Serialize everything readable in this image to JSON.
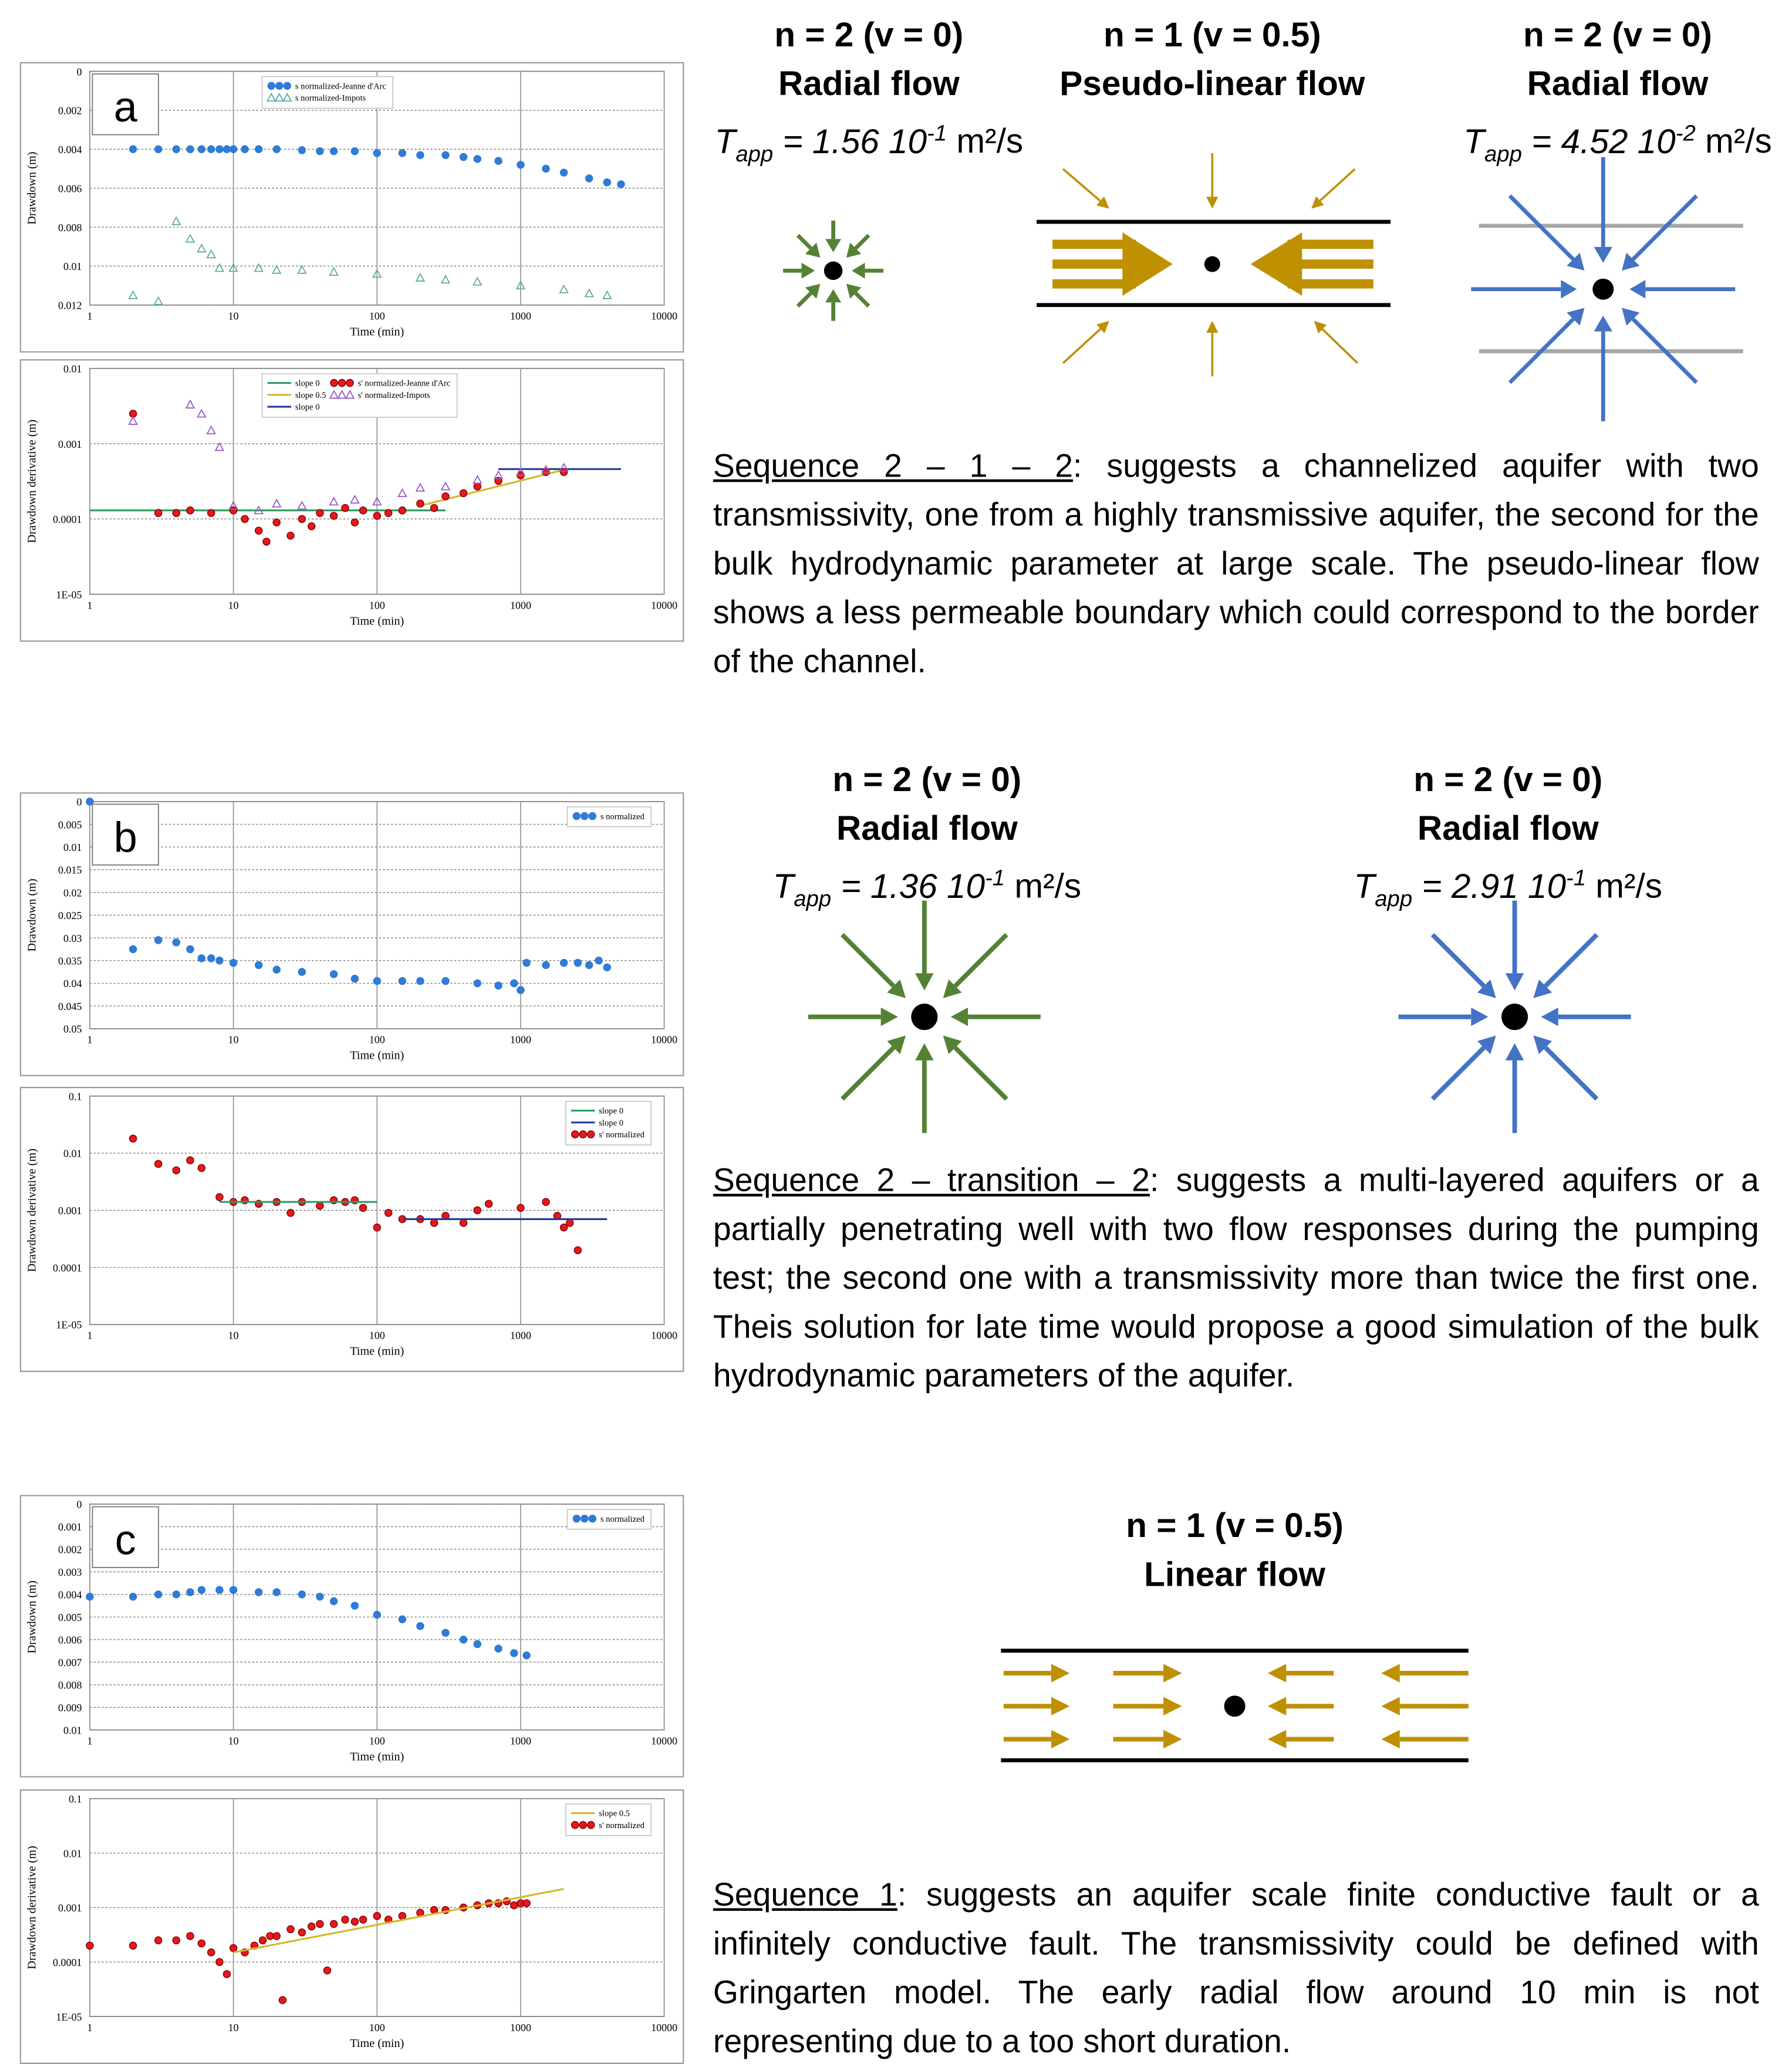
{
  "chart_data": [
    {
      "type": "scatter",
      "xlabel": "Time (min)",
      "ylabel": "Drawdown (m)",
      "xscale": "log",
      "xlim": [
        1,
        10000
      ],
      "xticks": [
        1,
        10,
        100,
        1000,
        10000
      ],
      "yscale": "linear",
      "yinvert": true,
      "ylim": [
        0,
        0.012
      ],
      "yticks": [
        0,
        0.002,
        0.004,
        0.006,
        0.008,
        0.01,
        0.012
      ],
      "grid": true,
      "legend": "upper center",
      "series": [
        {
          "name": "s normalized-Jeanne d'Arc",
          "color": "#2f7bd6",
          "marker": "circle",
          "x": [
            2,
            3,
            4,
            5,
            6,
            7,
            8,
            9,
            10,
            12,
            15,
            20,
            30,
            40,
            50,
            70,
            100,
            150,
            200,
            300,
            400,
            500,
            700,
            1000,
            1500,
            2000,
            3000,
            4000,
            5000
          ],
          "values": [
            0.004,
            0.004,
            0.004,
            0.004,
            0.004,
            0.004,
            0.004,
            0.004,
            0.004,
            0.004,
            0.004,
            0.004,
            0.00405,
            0.0041,
            0.0041,
            0.0041,
            0.0042,
            0.0042,
            0.0043,
            0.0043,
            0.0044,
            0.0045,
            0.0046,
            0.0048,
            0.005,
            0.0052,
            0.0055,
            0.0057,
            0.0058
          ]
        },
        {
          "name": "s normalized-Impots",
          "color": "#5fa8a0",
          "marker": "triangle",
          "x": [
            2,
            3,
            4,
            5,
            6,
            7,
            8,
            10,
            15,
            20,
            30,
            50,
            100,
            200,
            300,
            500,
            1000,
            2000,
            3000,
            4000
          ],
          "values": [
            0.0115,
            0.0118,
            0.0077,
            0.0086,
            0.0091,
            0.0094,
            0.0101,
            0.0101,
            0.0101,
            0.0102,
            0.0102,
            0.0103,
            0.0104,
            0.0106,
            0.0107,
            0.0108,
            0.011,
            0.0112,
            0.0114,
            0.0115
          ]
        }
      ]
    },
    {
      "type": "scatter",
      "xlabel": "Time (min)",
      "ylabel": "Drawdown derivative (m)",
      "xscale": "log",
      "xlim": [
        1,
        10000
      ],
      "xticks": [
        1,
        10,
        100,
        1000,
        10000
      ],
      "yscale": "log",
      "ylim": [
        1e-05,
        0.01
      ],
      "yticks": [
        {
          "value": 1e-05,
          "label": "1E-05"
        },
        0.0001,
        0.001,
        0.01
      ],
      "grid": true,
      "legend": "upper center",
      "series": [
        {
          "name": "slope 0",
          "color": "#2f9a63",
          "marker": "line",
          "x": [
            1,
            300
          ],
          "values": [
            0.00013,
            0.00013
          ]
        },
        {
          "name": "slope 0.5",
          "color": "#d4b82a",
          "marker": "line",
          "x": [
            200,
            2000
          ],
          "values": [
            0.00015,
            0.00045
          ]
        },
        {
          "name": "slope 0",
          "color": "#1f3f9a",
          "marker": "line",
          "x": [
            700,
            5000
          ],
          "values": [
            0.00046,
            0.00046
          ]
        },
        {
          "name": "s' normalized-Jeanne d'Arc",
          "color": "#e8171b",
          "marker": "circle",
          "x": [
            2,
            3,
            4,
            5,
            7,
            10,
            12,
            15,
            17,
            20,
            25,
            30,
            35,
            40,
            50,
            60,
            70,
            80,
            100,
            120,
            150,
            200,
            250,
            300,
            400,
            500,
            700,
            1000,
            1500,
            2000
          ],
          "values": [
            0.0025,
            0.00012,
            0.00012,
            0.00013,
            0.00012,
            0.00013,
            0.0001,
            7e-05,
            5e-05,
            9e-05,
            6e-05,
            0.0001,
            8e-05,
            0.00012,
            0.00011,
            0.00014,
            9e-05,
            0.00013,
            0.00011,
            0.00012,
            0.00013,
            0.00016,
            0.00014,
            0.0002,
            0.00022,
            0.00027,
            0.00032,
            0.00038,
            0.00042,
            0.00042
          ]
        },
        {
          "name": "s' normalized-Impots",
          "color": "#9a5ac4",
          "marker": "triangle",
          "x": [
            2,
            5,
            6,
            7,
            8,
            10,
            15,
            20,
            30,
            50,
            70,
            100,
            150,
            200,
            300,
            500,
            700,
            1000,
            1500,
            2000
          ],
          "values": [
            0.002,
            0.0033,
            0.0025,
            0.0015,
            0.0009,
            0.00015,
            0.00013,
            0.00016,
            0.00015,
            0.00017,
            0.00018,
            0.00017,
            0.00022,
            0.00026,
            0.00027,
            0.00033,
            0.00038,
            0.00042,
            0.00045,
            0.00048
          ]
        }
      ]
    },
    {
      "type": "scatter",
      "xlabel": "Time (min)",
      "ylabel": "Drawdown (m)",
      "xscale": "log",
      "xlim": [
        1,
        10000
      ],
      "xticks": [
        1,
        10,
        100,
        1000,
        10000
      ],
      "yscale": "linear",
      "yinvert": true,
      "ylim": [
        0,
        0.05
      ],
      "yticks": [
        0,
        0.005,
        0.01,
        0.015,
        0.02,
        0.025,
        0.03,
        0.035,
        0.04,
        0.045,
        0.05
      ],
      "grid": true,
      "legend": "upper right",
      "series": [
        {
          "name": "s normalized",
          "color": "#2f7bd6",
          "marker": "circle",
          "x": [
            1,
            2,
            3,
            4,
            5,
            6,
            7,
            8,
            10,
            15,
            20,
            30,
            50,
            70,
            100,
            150,
            200,
            300,
            500,
            700,
            900,
            1000,
            1100,
            1500,
            2000,
            2500,
            3000,
            3500,
            4000
          ],
          "values": [
            0,
            0.0325,
            0.0305,
            0.031,
            0.0325,
            0.0345,
            0.0345,
            0.035,
            0.0355,
            0.036,
            0.037,
            0.0375,
            0.038,
            0.039,
            0.0395,
            0.0395,
            0.0395,
            0.0395,
            0.04,
            0.0405,
            0.04,
            0.0415,
            0.0355,
            0.036,
            0.0355,
            0.0355,
            0.036,
            0.035,
            0.0365
          ]
        }
      ]
    },
    {
      "type": "scatter",
      "xlabel": "Time (min)",
      "ylabel": "Drawdown derivative (m)",
      "xscale": "log",
      "xlim": [
        1,
        10000
      ],
      "xticks": [
        1,
        10,
        100,
        1000,
        10000
      ],
      "yscale": "log",
      "ylim": [
        1e-05,
        0.1
      ],
      "yticks": [
        {
          "value": 1e-05,
          "label": "1E-05"
        },
        0.0001,
        0.001,
        0.01,
        0.1
      ],
      "grid": true,
      "legend": "upper right",
      "series": [
        {
          "name": "s' normalized",
          "color": "#e8171b",
          "marker": "circle",
          "x": [
            2,
            3,
            4,
            5,
            6,
            8,
            10,
            12,
            15,
            20,
            25,
            30,
            40,
            50,
            60,
            70,
            80,
            100,
            120,
            150,
            200,
            250,
            300,
            400,
            500,
            600,
            1000,
            1500,
            1800,
            2000,
            2200,
            2500
          ],
          "values": [
            0.018,
            0.0065,
            0.005,
            0.0075,
            0.0055,
            0.0017,
            0.0014,
            0.0015,
            0.0013,
            0.0014,
            0.0009,
            0.0014,
            0.0012,
            0.0015,
            0.0014,
            0.0015,
            0.0011,
            0.0005,
            0.0009,
            0.0007,
            0.0007,
            0.0006,
            0.0008,
            0.0006,
            0.001,
            0.0013,
            0.0011,
            0.0014,
            0.0008,
            0.0005,
            0.0006,
            0.0002
          ]
        },
        {
          "name": "slope 0",
          "color": "#2f9a63",
          "marker": "line",
          "x": [
            8,
            100
          ],
          "values": [
            0.0014,
            0.0014
          ]
        },
        {
          "name": "slope 0",
          "color": "#1f3f9a",
          "marker": "line",
          "x": [
            150,
            4000
          ],
          "values": [
            0.0007,
            0.0007
          ]
        }
      ]
    },
    {
      "type": "scatter",
      "xlabel": "Time (min)",
      "ylabel": "Drawdown (m)",
      "xscale": "log",
      "xlim": [
        1,
        10000
      ],
      "xticks": [
        1,
        10,
        100,
        1000,
        10000
      ],
      "yscale": "linear",
      "yinvert": true,
      "ylim": [
        0,
        0.01
      ],
      "yticks": [
        0,
        0.001,
        0.002,
        0.003,
        0.004,
        0.005,
        0.006,
        0.007,
        0.008,
        0.009,
        0.01
      ],
      "grid": true,
      "legend": "upper right",
      "series": [
        {
          "name": "s normalized",
          "color": "#2f7bd6",
          "marker": "circle",
          "x": [
            1,
            2,
            3,
            4,
            5,
            6,
            8,
            10,
            15,
            20,
            30,
            40,
            50,
            70,
            100,
            150,
            200,
            300,
            400,
            500,
            700,
            900,
            1100
          ],
          "values": [
            0.0041,
            0.0041,
            0.004,
            0.004,
            0.0039,
            0.0038,
            0.0038,
            0.0038,
            0.0039,
            0.0039,
            0.004,
            0.0041,
            0.0043,
            0.0045,
            0.0049,
            0.0051,
            0.0054,
            0.0057,
            0.006,
            0.0062,
            0.0064,
            0.0066,
            0.0067
          ]
        }
      ]
    },
    {
      "type": "scatter",
      "xlabel": "Time (min)",
      "ylabel": "Drawdown derivative (m)",
      "xscale": "log",
      "xlim": [
        1,
        10000
      ],
      "xticks": [
        1,
        10,
        100,
        1000,
        10000
      ],
      "yscale": "log",
      "ylim": [
        1e-05,
        0.1
      ],
      "yticks": [
        {
          "value": 1e-05,
          "label": "1E-05"
        },
        0.0001,
        0.001,
        0.01,
        0.1
      ],
      "grid": true,
      "legend": "upper right",
      "series": [
        {
          "name": "s' normalized",
          "color": "#e8171b",
          "marker": "circle",
          "x": [
            1,
            2,
            3,
            4,
            5,
            6,
            7,
            8,
            9,
            10,
            12,
            14,
            16,
            18,
            20,
            22,
            25,
            30,
            35,
            40,
            45,
            50,
            60,
            70,
            80,
            100,
            120,
            150,
            200,
            250,
            300,
            400,
            500,
            600,
            700,
            800,
            900,
            1000,
            1100
          ],
          "values": [
            0.0002,
            0.0002,
            0.00025,
            0.00025,
            0.0003,
            0.00022,
            0.00015,
            0.0001,
            6e-05,
            0.00018,
            0.00015,
            0.0002,
            0.00025,
            0.0003,
            0.0003,
            2e-05,
            0.0004,
            0.00035,
            0.00045,
            0.0005,
            7e-05,
            0.0005,
            0.0006,
            0.00055,
            0.0006,
            0.0007,
            0.0006,
            0.0007,
            0.0008,
            0.0009,
            0.0009,
            0.001,
            0.0011,
            0.0012,
            0.0012,
            0.0013,
            0.0011,
            0.0012,
            0.0012
          ]
        },
        {
          "name": "slope 0.5",
          "color": "#d4b82a",
          "marker": "line",
          "x": [
            10,
            2000
          ],
          "values": [
            0.00015,
            0.0022
          ]
        }
      ]
    }
  ],
  "panels": [
    {
      "label": "a",
      "flows": [
        {
          "n": "n = 2 (v = 0)",
          "regime": "Radial flow",
          "tapp": {
            "symbol": "T",
            "subscript": "app",
            "mantissa": "= 1.56 10",
            "exponent": "-1",
            "unit": "m²/s"
          }
        },
        {
          "n": "n = 1 (v = 0.5)",
          "regime": "Pseudo-linear flow"
        },
        {
          "n": "n = 2 (v = 0)",
          "regime": "Radial flow",
          "tapp": {
            "symbol": "T",
            "subscript": "app",
            "mantissa": "= 4.52 10",
            "exponent": "-2",
            "unit": "m²/s"
          }
        }
      ],
      "sequence": {
        "name": "Sequence 2 – 1 – 2",
        "text": ": suggests a channelized aquifer with two transmissivity, one from a highly transmissive aquifer, the second for the bulk hydrodynamic parameter at large scale. The pseudo-linear flow shows a less permeable boundary which could correspond to the border of the channel."
      }
    },
    {
      "label": "b",
      "flows": [
        {
          "n": "n = 2 (v = 0)",
          "regime": "Radial flow",
          "tapp": {
            "symbol": "T",
            "subscript": "app",
            "mantissa": "= 1.36 10",
            "exponent": "-1",
            "unit": "m²/s"
          }
        },
        {
          "n": "n = 2 (v = 0)",
          "regime": "Radial flow",
          "tapp": {
            "symbol": "T",
            "subscript": "app",
            "mantissa": "= 2.91 10",
            "exponent": "-1",
            "unit": "m²/s"
          }
        }
      ],
      "sequence": {
        "name": "Sequence 2 – transition – 2",
        "text": ": suggests a multi-layered aquifers or a partially penetrating well with two flow responses during the pumping test; the second one with a transmissivity more than twice the first one. Theis solution for late time would propose a good simulation of the bulk hydrodynamic parameters of the aquifer."
      }
    },
    {
      "label": "c",
      "flows": [
        {
          "n": "n = 1 (v = 0.5)",
          "regime": "Linear flow"
        }
      ],
      "sequence": {
        "name": "Sequence 1",
        "text": ": suggests an aquifer scale finite conductive fault or a infinitely conductive fault. The transmissivity could  be defined with Gringarten model. The early radial flow around 10 min is not representing due to a too short duration."
      }
    }
  ]
}
